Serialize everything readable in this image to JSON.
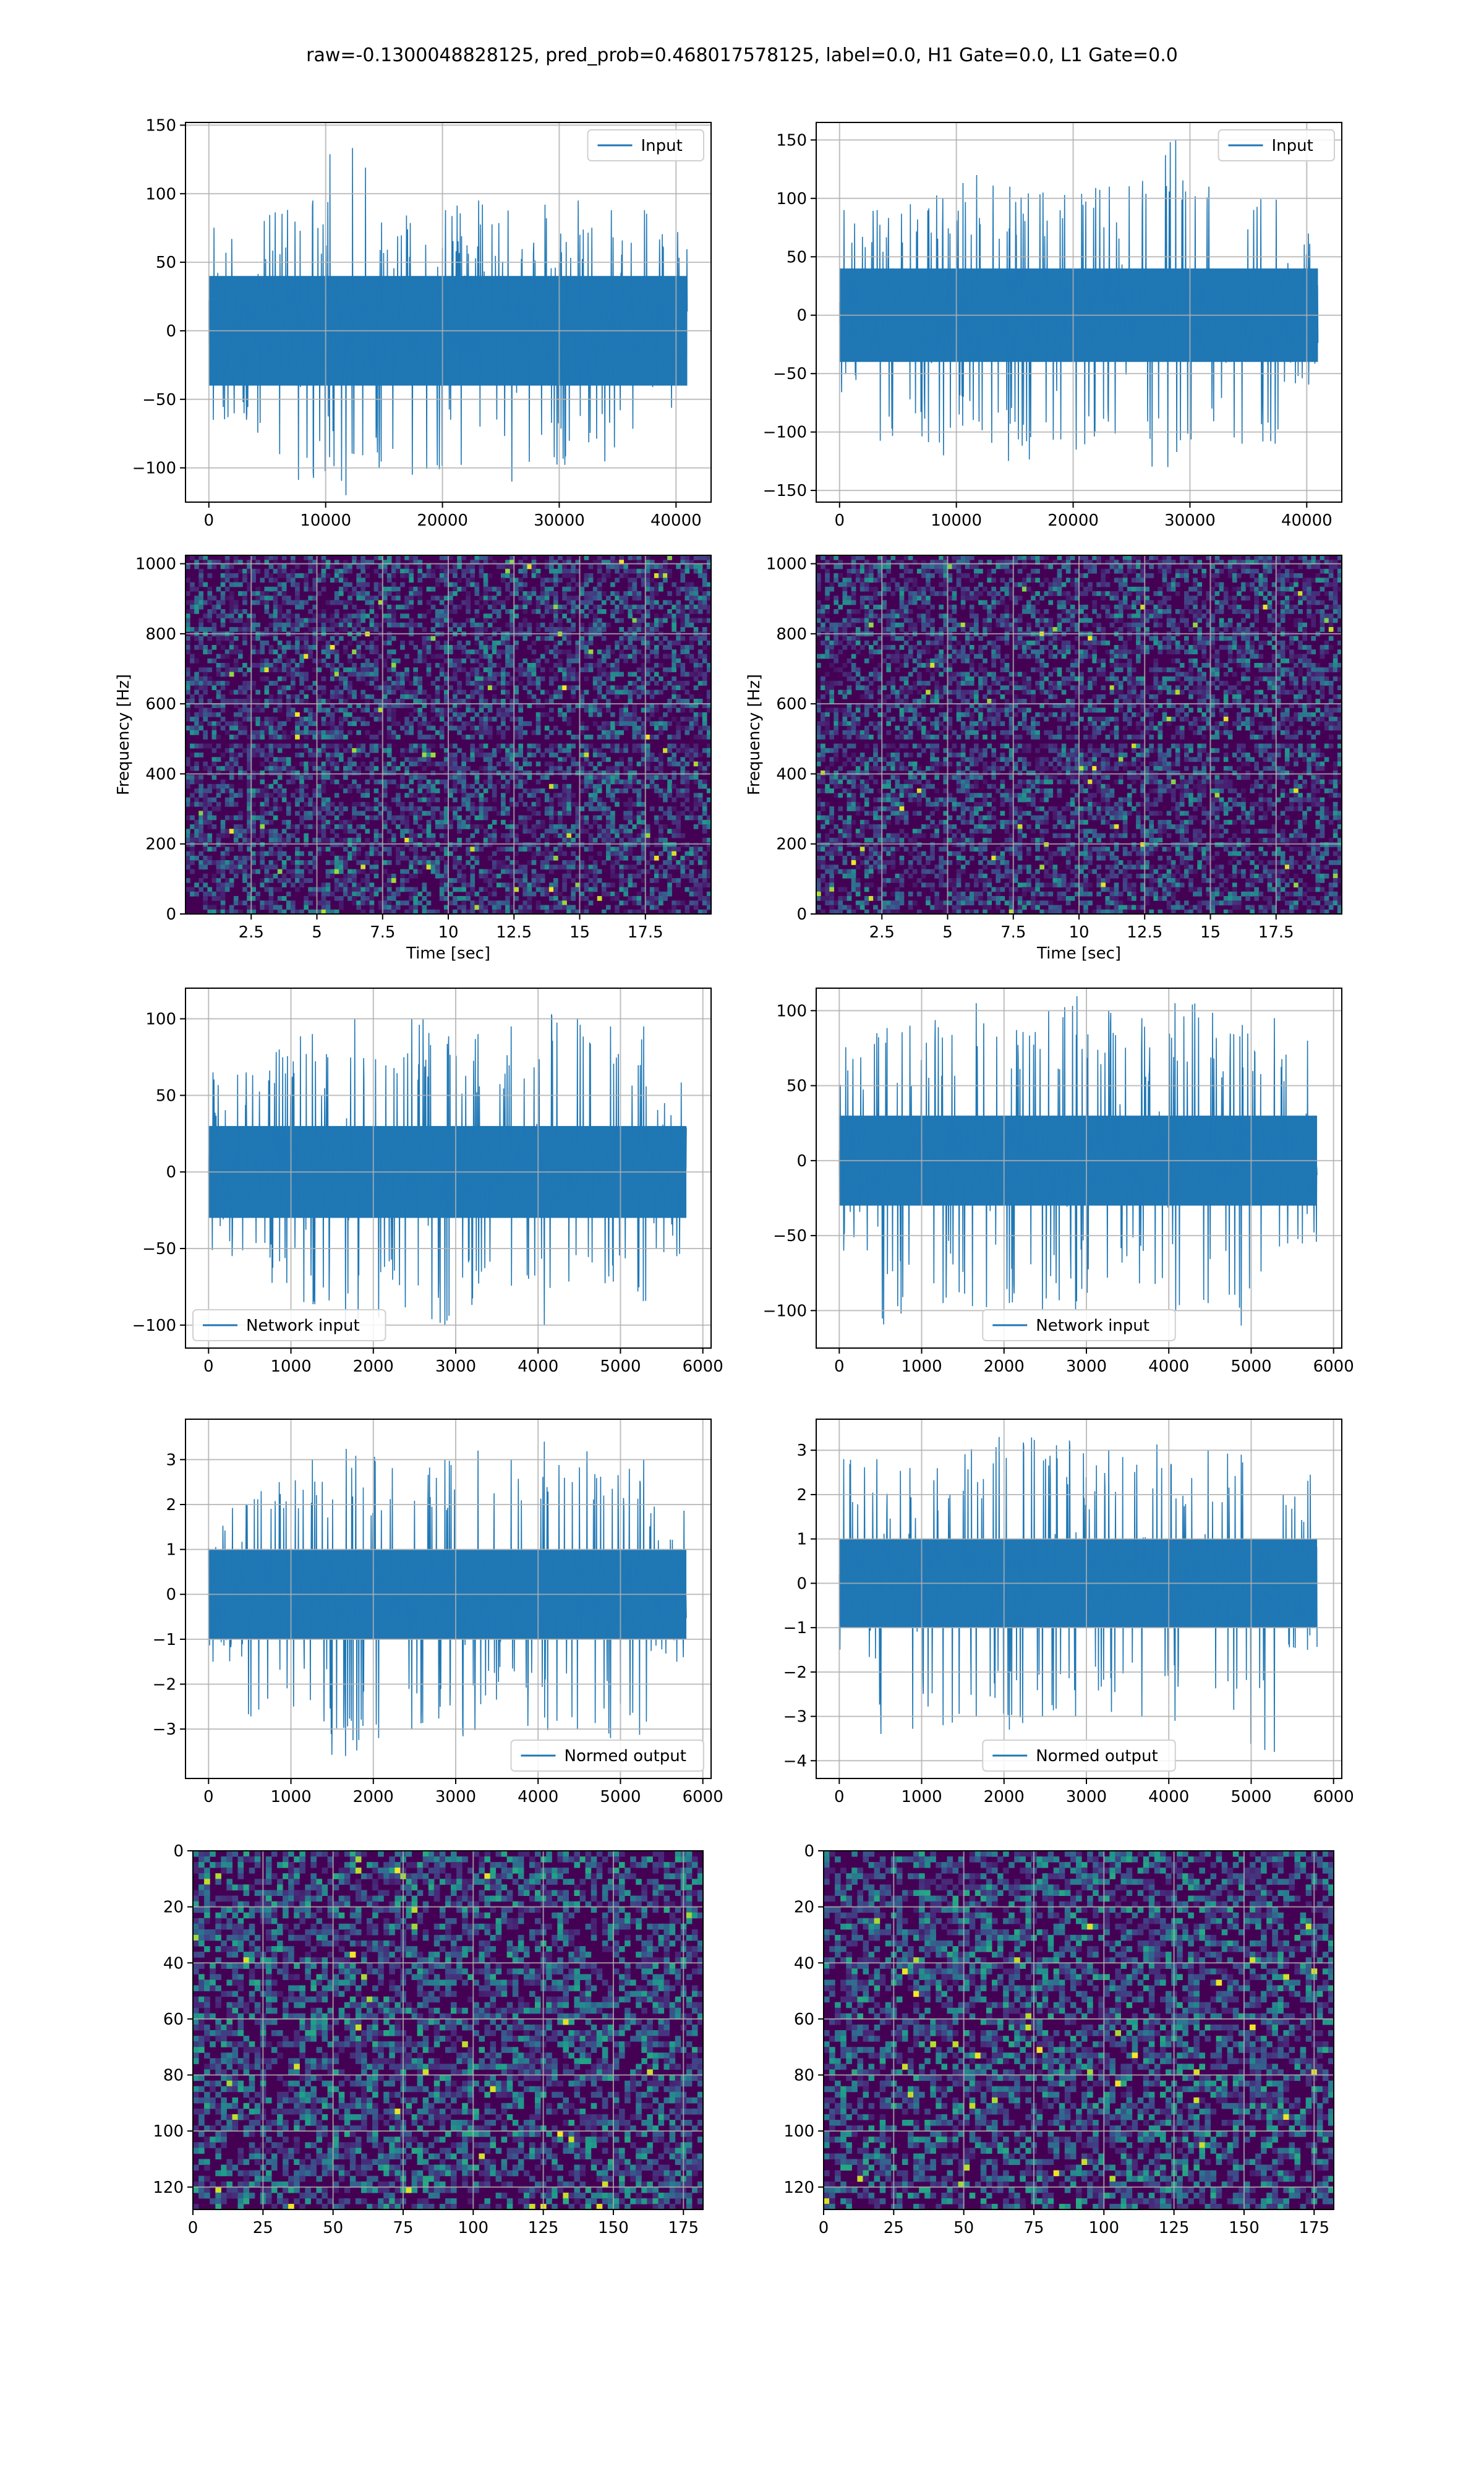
{
  "figure": {
    "suptitle": "raw=-0.1300048828125, pred_prob=0.468017578125, label=0.0, H1 Gate=0.0, L1 Gate=0.0"
  },
  "colors": {
    "line": "#1f77b4",
    "grid": "#b0b0b0",
    "viridis_dark": "#440154",
    "viridis_mid": "#21918c",
    "viridis_bright": "#fde725"
  },
  "chart_data": [
    {
      "id": "input-left",
      "type": "line",
      "series": [
        {
          "name": "Input",
          "x_range": [
            0,
            40960
          ],
          "y_envelope_upper": [
            88,
            90,
            95,
            140,
            92,
            88,
            95,
            90,
            92,
            95,
            88,
            72
          ],
          "y_envelope_lower": [
            -65,
            -90,
            -110,
            -120,
            -100,
            -105,
            -100,
            -110,
            -100,
            -105,
            -95,
            -60
          ],
          "y_typical_band": [
            -40,
            40
          ]
        }
      ],
      "xticks": [
        0,
        10000,
        20000,
        30000,
        40000
      ],
      "yticks": [
        -100,
        -50,
        0,
        50,
        100,
        150
      ],
      "xlim": [
        -2000,
        43000
      ],
      "ylim": [
        -125,
        152
      ],
      "xlabel": "",
      "ylabel": "",
      "grid": true,
      "legend": "upper right"
    },
    {
      "id": "input-right",
      "type": "line",
      "series": [
        {
          "name": "Input",
          "x_range": [
            0,
            40960
          ],
          "y_envelope_upper": [
            90,
            95,
            110,
            120,
            110,
            105,
            110,
            115,
            150,
            110,
            100,
            70
          ],
          "y_envelope_lower": [
            -70,
            -120,
            -120,
            -110,
            -125,
            -115,
            -120,
            -130,
            -140,
            -120,
            -110,
            -60
          ],
          "y_typical_band": [
            -40,
            40
          ]
        }
      ],
      "xticks": [
        0,
        10000,
        20000,
        30000,
        40000
      ],
      "yticks": [
        -150,
        -100,
        -50,
        0,
        50,
        100,
        150
      ],
      "xlim": [
        -2000,
        43000
      ],
      "ylim": [
        -160,
        165
      ],
      "xlabel": "",
      "ylabel": "",
      "grid": true,
      "legend": "upper right"
    },
    {
      "id": "spectrogram-left",
      "type": "heatmap",
      "xticks": [
        2.5,
        5.0,
        7.5,
        10.0,
        12.5,
        15.0,
        17.5
      ],
      "yticks": [
        0,
        200,
        400,
        600,
        800,
        1000
      ],
      "xlim": [
        0,
        20
      ],
      "ylim": [
        0,
        1024
      ],
      "xlabel": "Time [sec]",
      "ylabel": "Frequency [Hz]",
      "grid": true,
      "colormap": "viridis",
      "dark_band_hz": 500
    },
    {
      "id": "spectrogram-right",
      "type": "heatmap",
      "xticks": [
        2.5,
        5.0,
        7.5,
        10.0,
        12.5,
        15.0,
        17.5
      ],
      "yticks": [
        0,
        200,
        400,
        600,
        800,
        1000
      ],
      "xlim": [
        0,
        20
      ],
      "ylim": [
        0,
        1024
      ],
      "xlabel": "Time [sec]",
      "ylabel": "Frequency [Hz]",
      "grid": true,
      "colormap": "viridis",
      "dark_band_hz": 500
    },
    {
      "id": "network-left",
      "type": "line",
      "series": [
        {
          "name": "Network input",
          "x_range": [
            0,
            5800
          ],
          "y_envelope_upper": [
            65,
            80,
            90,
            100,
            95,
            100,
            90,
            95,
            105,
            100,
            95,
            60
          ],
          "y_envelope_lower": [
            -55,
            -80,
            -90,
            -100,
            -95,
            -100,
            -95,
            -90,
            -100,
            -95,
            -90,
            -55
          ],
          "y_typical_band": [
            -30,
            30
          ]
        }
      ],
      "xticks": [
        0,
        1000,
        2000,
        3000,
        4000,
        5000,
        6000
      ],
      "yticks": [
        -100,
        -50,
        0,
        50,
        100
      ],
      "xlim": [
        -280,
        6100
      ],
      "ylim": [
        -115,
        120
      ],
      "xlabel": "",
      "ylabel": "",
      "grid": true,
      "legend": "lower left"
    },
    {
      "id": "network-right",
      "type": "line",
      "series": [
        {
          "name": "Network input",
          "x_range": [
            0,
            5800
          ],
          "y_envelope_upper": [
            85,
            90,
            95,
            105,
            100,
            110,
            100,
            95,
            105,
            100,
            95,
            80
          ],
          "y_envelope_lower": [
            -60,
            -110,
            -95,
            -100,
            -95,
            -100,
            -95,
            -90,
            -100,
            -95,
            -110,
            -60
          ],
          "y_typical_band": [
            -30,
            30
          ]
        }
      ],
      "xticks": [
        0,
        1000,
        2000,
        3000,
        4000,
        5000,
        6000
      ],
      "yticks": [
        -100,
        -50,
        0,
        50,
        100
      ],
      "xlim": [
        -280,
        6100
      ],
      "ylim": [
        -125,
        115
      ],
      "xlabel": "",
      "ylabel": "",
      "grid": true,
      "legend": "lower center"
    },
    {
      "id": "normed-left",
      "type": "line",
      "series": [
        {
          "name": "Normed output",
          "x_range": [
            0,
            5800
          ],
          "y_envelope_upper": [
            2.0,
            2.5,
            3.0,
            3.3,
            3.1,
            3.0,
            3.2,
            3.0,
            3.4,
            3.2,
            3.0,
            2.0
          ],
          "y_envelope_lower": [
            -1.5,
            -2.8,
            -3.0,
            -3.6,
            -3.2,
            -3.0,
            -3.2,
            -2.9,
            -3.1,
            -3.0,
            -3.2,
            -1.5
          ],
          "y_typical_band": [
            -1,
            1
          ]
        }
      ],
      "xticks": [
        0,
        1000,
        2000,
        3000,
        4000,
        5000,
        6000
      ],
      "yticks": [
        -3,
        -2,
        -1,
        0,
        1,
        2,
        3
      ],
      "xlim": [
        -280,
        6100
      ],
      "ylim": [
        -4.1,
        3.9
      ],
      "xlabel": "",
      "ylabel": "",
      "grid": true,
      "legend": "lower right"
    },
    {
      "id": "normed-right",
      "type": "line",
      "series": [
        {
          "name": "Normed output",
          "x_range": [
            0,
            5800
          ],
          "y_envelope_upper": [
            2.8,
            2.6,
            2.9,
            3.2,
            3.5,
            3.3,
            3.0,
            3.2,
            3.1,
            3.0,
            2.9,
            2.5
          ],
          "y_envelope_lower": [
            -1.7,
            -3.5,
            -3.2,
            -3.0,
            -3.3,
            -3.0,
            -3.2,
            -3.0,
            -3.1,
            -3.0,
            -3.8,
            -1.5
          ],
          "y_typical_band": [
            -1,
            1
          ]
        }
      ],
      "xticks": [
        0,
        1000,
        2000,
        3000,
        4000,
        5000,
        6000
      ],
      "yticks": [
        -4,
        -3,
        -2,
        -1,
        0,
        1,
        2,
        3
      ],
      "xlim": [
        -280,
        6100
      ],
      "ylim": [
        -4.4,
        3.7
      ],
      "xlabel": "",
      "ylabel": "",
      "grid": true,
      "legend": "lower center"
    },
    {
      "id": "matrix-left",
      "type": "heatmap",
      "xticks": [
        0,
        25,
        50,
        75,
        100,
        125,
        150,
        175
      ],
      "yticks": [
        0,
        20,
        40,
        60,
        80,
        100,
        120
      ],
      "xlim": [
        0,
        182
      ],
      "ylim": [
        128,
        0
      ],
      "xlabel": "",
      "ylabel": "",
      "grid": true,
      "colormap": "viridis",
      "shape": [
        128,
        182
      ]
    },
    {
      "id": "matrix-right",
      "type": "heatmap",
      "xticks": [
        0,
        25,
        50,
        75,
        100,
        125,
        150,
        175
      ],
      "yticks": [
        0,
        20,
        40,
        60,
        80,
        100,
        120
      ],
      "xlim": [
        0,
        182
      ],
      "ylim": [
        128,
        0
      ],
      "xlabel": "",
      "ylabel": "",
      "grid": true,
      "colormap": "viridis",
      "shape": [
        128,
        182
      ]
    }
  ]
}
